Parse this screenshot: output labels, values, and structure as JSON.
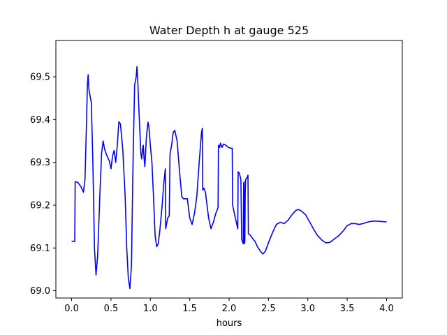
{
  "chart_data": {
    "type": "line",
    "title": "Water Depth h at gauge 525",
    "xlabel": "hours",
    "ylabel": "",
    "xlim": [
      -0.2,
      4.2
    ],
    "ylim": [
      68.983,
      69.585
    ],
    "x_ticks": [
      0.0,
      0.5,
      1.0,
      1.5,
      2.0,
      2.5,
      3.0,
      3.5,
      4.0
    ],
    "x_tick_labels": [
      "0.0",
      "0.5",
      "1.0",
      "1.5",
      "2.0",
      "2.5",
      "3.0",
      "3.5",
      "4.0"
    ],
    "y_ticks": [
      69.0,
      69.1,
      69.2,
      69.3,
      69.4,
      69.5
    ],
    "y_tick_labels": [
      "69.0",
      "69.1",
      "69.2",
      "69.3",
      "69.4",
      "69.5"
    ],
    "grid": false,
    "legend": "none",
    "series": [
      {
        "color": "#0000ff",
        "points": [
          [
            0.0,
            69.116
          ],
          [
            0.04,
            69.115
          ],
          [
            0.045,
            69.255
          ],
          [
            0.08,
            69.253
          ],
          [
            0.12,
            69.243
          ],
          [
            0.15,
            69.23
          ],
          [
            0.17,
            69.26
          ],
          [
            0.19,
            69.4
          ],
          [
            0.2,
            69.48
          ],
          [
            0.21,
            69.505
          ],
          [
            0.22,
            69.47
          ],
          [
            0.25,
            69.44
          ],
          [
            0.27,
            69.3
          ],
          [
            0.29,
            69.1
          ],
          [
            0.31,
            69.037
          ],
          [
            0.33,
            69.08
          ],
          [
            0.36,
            69.23
          ],
          [
            0.38,
            69.32
          ],
          [
            0.4,
            69.35
          ],
          [
            0.42,
            69.33
          ],
          [
            0.45,
            69.315
          ],
          [
            0.48,
            69.303
          ],
          [
            0.5,
            69.285
          ],
          [
            0.52,
            69.315
          ],
          [
            0.54,
            69.328
          ],
          [
            0.56,
            69.3
          ],
          [
            0.58,
            69.34
          ],
          [
            0.6,
            69.395
          ],
          [
            0.62,
            69.39
          ],
          [
            0.65,
            69.33
          ],
          [
            0.68,
            69.22
          ],
          [
            0.7,
            69.1
          ],
          [
            0.72,
            69.03
          ],
          [
            0.74,
            69.005
          ],
          [
            0.76,
            69.06
          ],
          [
            0.78,
            69.3
          ],
          [
            0.8,
            69.48
          ],
          [
            0.82,
            69.5
          ],
          [
            0.83,
            69.524
          ],
          [
            0.84,
            69.49
          ],
          [
            0.86,
            69.4
          ],
          [
            0.88,
            69.32
          ],
          [
            0.89,
            69.308
          ],
          [
            0.9,
            69.33
          ],
          [
            0.91,
            69.34
          ],
          [
            0.92,
            69.31
          ],
          [
            0.93,
            69.29
          ],
          [
            0.95,
            69.36
          ],
          [
            0.97,
            69.394
          ],
          [
            0.98,
            69.385
          ],
          [
            1.0,
            69.34
          ],
          [
            1.02,
            69.3
          ],
          [
            1.04,
            69.22
          ],
          [
            1.06,
            69.13
          ],
          [
            1.08,
            69.103
          ],
          [
            1.1,
            69.11
          ],
          [
            1.12,
            69.14
          ],
          [
            1.15,
            69.2
          ],
          [
            1.17,
            69.25
          ],
          [
            1.19,
            69.285
          ],
          [
            1.195,
            69.145
          ],
          [
            1.22,
            69.17
          ],
          [
            1.24,
            69.175
          ],
          [
            1.25,
            69.32
          ],
          [
            1.27,
            69.34
          ],
          [
            1.29,
            69.37
          ],
          [
            1.31,
            69.375
          ],
          [
            1.34,
            69.35
          ],
          [
            1.37,
            69.28
          ],
          [
            1.4,
            69.22
          ],
          [
            1.42,
            69.215
          ],
          [
            1.47,
            69.215
          ],
          [
            1.5,
            69.17
          ],
          [
            1.53,
            69.155
          ],
          [
            1.56,
            69.18
          ],
          [
            1.59,
            69.22
          ],
          [
            1.62,
            69.3
          ],
          [
            1.65,
            69.37
          ],
          [
            1.66,
            69.38
          ],
          [
            1.665,
            69.235
          ],
          [
            1.68,
            69.24
          ],
          [
            1.7,
            69.23
          ],
          [
            1.74,
            69.17
          ],
          [
            1.77,
            69.145
          ],
          [
            1.8,
            69.16
          ],
          [
            1.83,
            69.18
          ],
          [
            1.86,
            69.195
          ],
          [
            1.865,
            69.34
          ],
          [
            1.88,
            69.335
          ],
          [
            1.89,
            69.345
          ],
          [
            1.9,
            69.34
          ],
          [
            1.91,
            69.335
          ],
          [
            1.93,
            69.343
          ],
          [
            1.96,
            69.34
          ],
          [
            1.99,
            69.335
          ],
          [
            2.03,
            69.333
          ],
          [
            2.04,
            69.333
          ],
          [
            2.045,
            69.2
          ],
          [
            2.08,
            69.17
          ],
          [
            2.11,
            69.145
          ],
          [
            2.115,
            69.278
          ],
          [
            2.13,
            69.275
          ],
          [
            2.15,
            69.26
          ],
          [
            2.16,
            69.12
          ],
          [
            2.18,
            69.11
          ],
          [
            2.185,
            69.25
          ],
          [
            2.19,
            69.255
          ],
          [
            2.195,
            69.11
          ],
          [
            2.2,
            69.115
          ],
          [
            2.205,
            69.23
          ],
          [
            2.21,
            69.26
          ],
          [
            2.23,
            69.265
          ],
          [
            2.24,
            69.27
          ],
          [
            2.245,
            69.133
          ],
          [
            2.27,
            69.13
          ],
          [
            2.3,
            69.122
          ],
          [
            2.33,
            69.115
          ],
          [
            2.36,
            69.103
          ],
          [
            2.4,
            69.092
          ],
          [
            2.43,
            69.086
          ],
          [
            2.46,
            69.092
          ],
          [
            2.5,
            69.112
          ],
          [
            2.55,
            69.135
          ],
          [
            2.6,
            69.155
          ],
          [
            2.65,
            69.16
          ],
          [
            2.7,
            69.157
          ],
          [
            2.75,
            69.165
          ],
          [
            2.8,
            69.178
          ],
          [
            2.85,
            69.188
          ],
          [
            2.88,
            69.19
          ],
          [
            2.92,
            69.186
          ],
          [
            2.97,
            69.178
          ],
          [
            3.02,
            69.162
          ],
          [
            3.07,
            69.145
          ],
          [
            3.12,
            69.13
          ],
          [
            3.18,
            69.118
          ],
          [
            3.23,
            69.112
          ],
          [
            3.28,
            69.113
          ],
          [
            3.33,
            69.12
          ],
          [
            3.4,
            69.13
          ],
          [
            3.45,
            69.14
          ],
          [
            3.5,
            69.152
          ],
          [
            3.55,
            69.157
          ],
          [
            3.6,
            69.157
          ],
          [
            3.65,
            69.155
          ],
          [
            3.7,
            69.157
          ],
          [
            3.75,
            69.16
          ],
          [
            3.8,
            69.162
          ],
          [
            3.85,
            69.163
          ],
          [
            4.0,
            69.161
          ]
        ]
      }
    ]
  }
}
